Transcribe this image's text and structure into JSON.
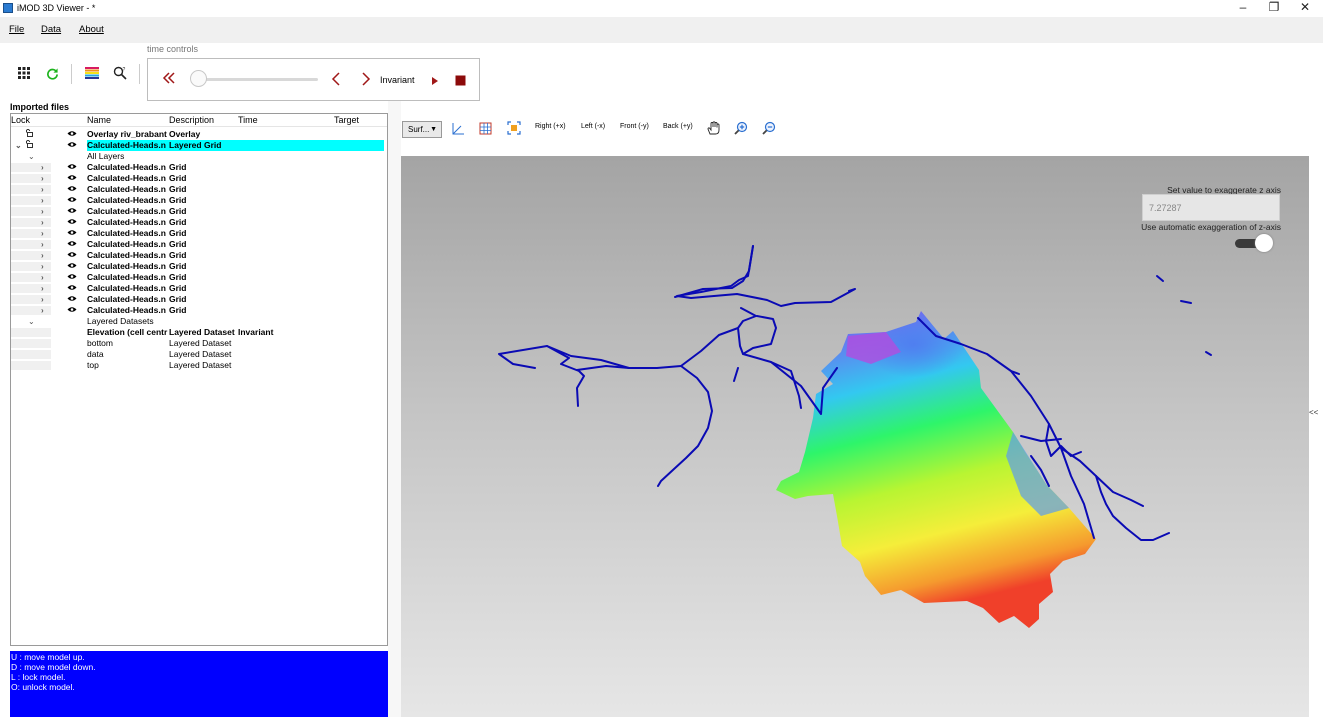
{
  "window": {
    "title": "iMOD 3D Viewer  -    *"
  },
  "menu": [
    "File",
    "Data",
    "About"
  ],
  "time_controls": {
    "label": "time controls",
    "state": "Invariant"
  },
  "left_panel": {
    "title": "Imported files",
    "columns": [
      "Lock",
      "Name",
      "Description",
      "Time",
      "Target"
    ],
    "rows": [
      {
        "name": "Overlay riv_brabant",
        "desc": "Overlay",
        "time": "",
        "bold": true,
        "eye": true,
        "lock": true,
        "gutter": false,
        "chev": "",
        "indent": 0
      },
      {
        "name": "Calculated-Heads.n",
        "desc": "Layered Grid",
        "time": "",
        "bold": true,
        "eye": true,
        "lock": true,
        "gutter": false,
        "chev": "v",
        "indent": 0,
        "selected": true
      },
      {
        "name": "All Layers",
        "desc": "",
        "time": "",
        "bold": false,
        "eye": false,
        "lock": false,
        "gutter": false,
        "chev": "v",
        "indent": 1
      },
      {
        "name": "Calculated-Heads.n",
        "desc": "Grid",
        "time": "",
        "bold": true,
        "eye": true,
        "lock": false,
        "gutter": true,
        "chev": ">",
        "indent": 2
      },
      {
        "name": "Calculated-Heads.n",
        "desc": "Grid",
        "time": "",
        "bold": true,
        "eye": true,
        "lock": false,
        "gutter": true,
        "chev": ">",
        "indent": 2
      },
      {
        "name": "Calculated-Heads.n",
        "desc": "Grid",
        "time": "",
        "bold": true,
        "eye": true,
        "lock": false,
        "gutter": true,
        "chev": ">",
        "indent": 2
      },
      {
        "name": "Calculated-Heads.n",
        "desc": "Grid",
        "time": "",
        "bold": true,
        "eye": true,
        "lock": false,
        "gutter": true,
        "chev": ">",
        "indent": 2
      },
      {
        "name": "Calculated-Heads.n",
        "desc": "Grid",
        "time": "",
        "bold": true,
        "eye": true,
        "lock": false,
        "gutter": true,
        "chev": ">",
        "indent": 2
      },
      {
        "name": "Calculated-Heads.n",
        "desc": "Grid",
        "time": "",
        "bold": true,
        "eye": true,
        "lock": false,
        "gutter": true,
        "chev": ">",
        "indent": 2
      },
      {
        "name": "Calculated-Heads.n",
        "desc": "Grid",
        "time": "",
        "bold": true,
        "eye": true,
        "lock": false,
        "gutter": true,
        "chev": ">",
        "indent": 2
      },
      {
        "name": "Calculated-Heads.n",
        "desc": "Grid",
        "time": "",
        "bold": true,
        "eye": true,
        "lock": false,
        "gutter": true,
        "chev": ">",
        "indent": 2
      },
      {
        "name": "Calculated-Heads.n",
        "desc": "Grid",
        "time": "",
        "bold": true,
        "eye": true,
        "lock": false,
        "gutter": true,
        "chev": ">",
        "indent": 2
      },
      {
        "name": "Calculated-Heads.n",
        "desc": "Grid",
        "time": "",
        "bold": true,
        "eye": true,
        "lock": false,
        "gutter": true,
        "chev": ">",
        "indent": 2
      },
      {
        "name": "Calculated-Heads.n",
        "desc": "Grid",
        "time": "",
        "bold": true,
        "eye": true,
        "lock": false,
        "gutter": true,
        "chev": ">",
        "indent": 2
      },
      {
        "name": "Calculated-Heads.n",
        "desc": "Grid",
        "time": "",
        "bold": true,
        "eye": true,
        "lock": false,
        "gutter": true,
        "chev": ">",
        "indent": 2
      },
      {
        "name": "Calculated-Heads.n",
        "desc": "Grid",
        "time": "",
        "bold": true,
        "eye": true,
        "lock": false,
        "gutter": true,
        "chev": ">",
        "indent": 2
      },
      {
        "name": "Calculated-Heads.n",
        "desc": "Grid",
        "time": "",
        "bold": true,
        "eye": true,
        "lock": false,
        "gutter": true,
        "chev": ">",
        "indent": 2
      },
      {
        "name": "Layered Datasets",
        "desc": "",
        "time": "",
        "bold": false,
        "eye": false,
        "lock": false,
        "gutter": false,
        "chev": "v",
        "indent": 1
      },
      {
        "name": "Elevation (cell centr",
        "desc": "Layered Dataset",
        "time": "Invariant",
        "bold": true,
        "eye": false,
        "lock": false,
        "gutter": true,
        "chev": "",
        "indent": 2
      },
      {
        "name": "bottom",
        "desc": "Layered Dataset",
        "time": "",
        "bold": false,
        "eye": false,
        "lock": false,
        "gutter": true,
        "chev": "",
        "indent": 2
      },
      {
        "name": "data",
        "desc": "Layered Dataset",
        "time": "",
        "bold": false,
        "eye": false,
        "lock": false,
        "gutter": true,
        "chev": "",
        "indent": 2
      },
      {
        "name": "top",
        "desc": "Layered Dataset",
        "time": "",
        "bold": false,
        "eye": false,
        "lock": false,
        "gutter": true,
        "chev": "",
        "indent": 2
      }
    ]
  },
  "console": {
    "lines": [
      "U : move model up.",
      "D : move model down.",
      "L : lock model.",
      "O: unlock model."
    ]
  },
  "view_toolbar": {
    "select_value": "Surf...",
    "buttons": [
      "Right (+x)",
      "Left (-x)",
      "Front (-y)",
      "Back (+y)"
    ]
  },
  "viewport": {
    "z_label": "Set value to exaggerate z axis",
    "z_value": "7.27287",
    "auto_label": "Use automatic exaggeration of z-axis",
    "auto_enabled": true
  },
  "collapse_label": "<<",
  "colors": {
    "selection": "#00ffff",
    "console_bg": "#0000ff",
    "river": "#0a0ab4",
    "accent_red": "#a01818"
  }
}
